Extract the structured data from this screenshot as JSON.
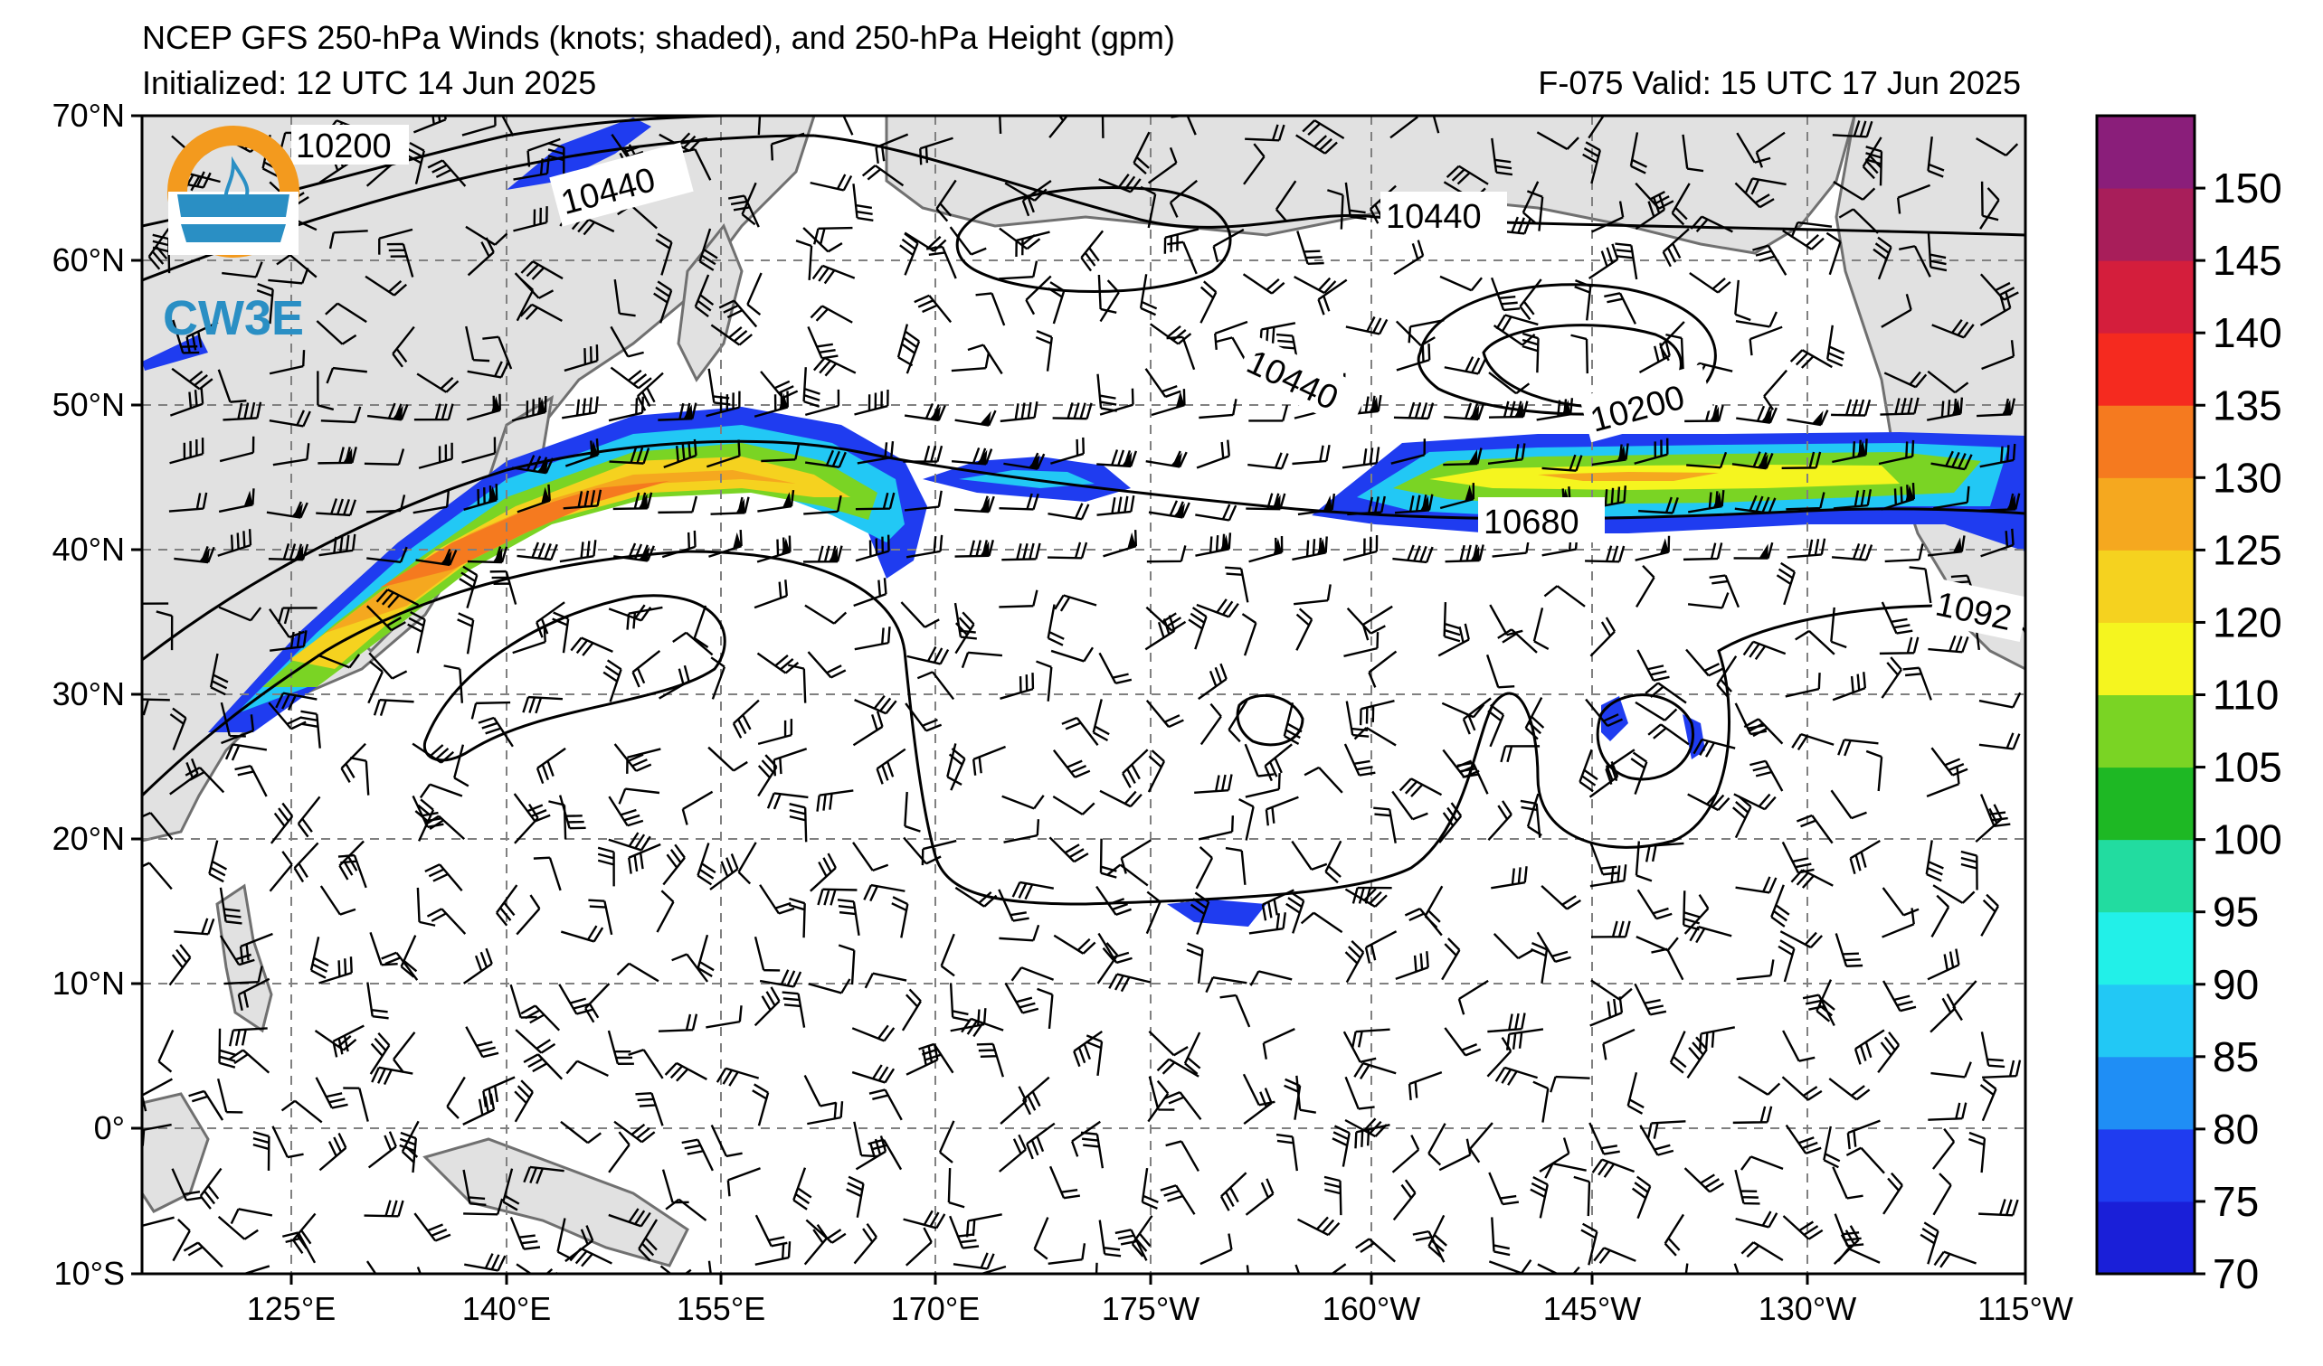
{
  "header": {
    "title": "NCEP GFS 250-hPa Winds (knots; shaded), and 250-hPa Height (gpm)",
    "initialized": "Initialized: 12 UTC 14 Jun 2025",
    "valid": "F-075  Valid: 15 UTC 17 Jun 2025"
  },
  "logo": {
    "text": "CW3E"
  },
  "map": {
    "lon_labels": [
      "125°E",
      "140°E",
      "155°E",
      "170°E",
      "175°W",
      "160°W",
      "145°W",
      "130°W",
      "115°W"
    ],
    "lat_labels": [
      "70°N",
      "60°N",
      "50°N",
      "40°N",
      "30°N",
      "20°N",
      "10°N",
      "0°",
      "10°S"
    ],
    "contour_labels": [
      "10200",
      "10440",
      "10440",
      "10440",
      "10200",
      "10680",
      "1092"
    ]
  },
  "colorbar": {
    "labels": [
      "150",
      "145",
      "140",
      "135",
      "130",
      "125",
      "120",
      "110",
      "105",
      "100",
      "95",
      "90",
      "85",
      "80",
      "75",
      "70"
    ],
    "colors_bottom_to_top": [
      "#1a1fd8",
      "#1f3cf0",
      "#1f8ef5",
      "#22c8f5",
      "#22f0e8",
      "#22dca0",
      "#1eb824",
      "#7ad424",
      "#f5f51f",
      "#f5d21f",
      "#f5a81f",
      "#f57a1f",
      "#f52a1f",
      "#d41e3c",
      "#a81e5a",
      "#8a1e7a"
    ]
  }
}
